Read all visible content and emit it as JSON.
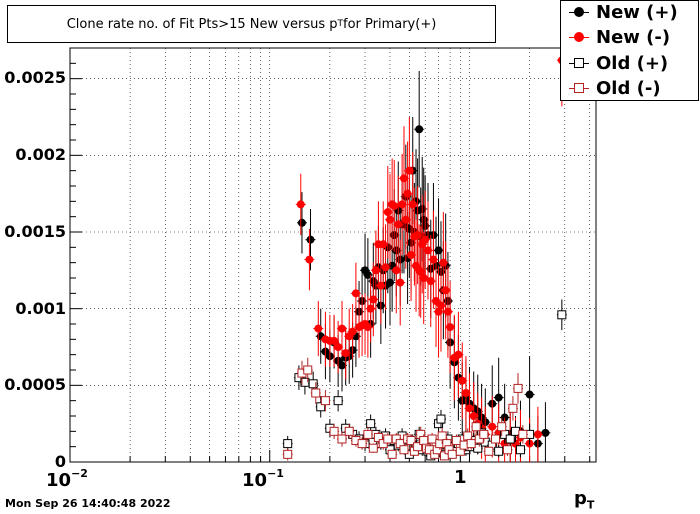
{
  "title": {
    "main": "Clone rate no. of Fit Pts>15 New versus p",
    "sub": "T",
    "suffix": " for Primary(+)"
  },
  "xlabel": {
    "main": "p",
    "sub": "T"
  },
  "timestamp": "Mon Sep 26 14:40:48 2022",
  "y_ticks": [
    {
      "value": 0.0025,
      "label": "0.0025"
    },
    {
      "value": 0.002,
      "label": "0.002"
    },
    {
      "value": 0.0015,
      "label": "0.0015"
    },
    {
      "value": 0.001,
      "label": "0.001"
    },
    {
      "value": 0.0005,
      "label": "0.0005"
    },
    {
      "value": 0,
      "label": "0"
    }
  ],
  "x_ticks": [
    {
      "value": 0.01,
      "base": "10",
      "exp": "−2",
      "label": ""
    },
    {
      "value": 0.1,
      "base": "10",
      "exp": "−1",
      "label": ""
    },
    {
      "value": 1,
      "base": "",
      "exp": "",
      "label": "1"
    }
  ],
  "legend": [
    {
      "label": "New (+)",
      "color": "#000000",
      "marker": "filled-circle"
    },
    {
      "label": "New (-)",
      "color": "#ff0000",
      "marker": "filled-circle"
    },
    {
      "label": "Old (+)",
      "color": "#000000",
      "marker": "open-square"
    },
    {
      "label": "Old (-)",
      "color": "#b22222",
      "marker": "open-square"
    }
  ],
  "chart_data": {
    "type": "scatter",
    "x_scale": "log",
    "xlim": [
      0.01,
      4.3
    ],
    "ylim": [
      0,
      0.0027
    ],
    "grid": true,
    "legend_position": "top-right",
    "series": [
      {
        "name": "New (+)",
        "color": "#000000",
        "marker": "filled-circle",
        "x": [
          0.145,
          0.16,
          0.18,
          0.19,
          0.2,
          0.21,
          0.22,
          0.23,
          0.24,
          0.25,
          0.26,
          0.27,
          0.28,
          0.29,
          0.3,
          0.31,
          0.32,
          0.33,
          0.34,
          0.35,
          0.36,
          0.37,
          0.38,
          0.39,
          0.4,
          0.41,
          0.42,
          0.43,
          0.44,
          0.45,
          0.46,
          0.47,
          0.48,
          0.49,
          0.5,
          0.51,
          0.52,
          0.53,
          0.54,
          0.55,
          0.56,
          0.57,
          0.58,
          0.59,
          0.6,
          0.62,
          0.64,
          0.66,
          0.68,
          0.7,
          0.72,
          0.74,
          0.76,
          0.78,
          0.8,
          0.84,
          0.88,
          0.92,
          0.96,
          1.0,
          1.05,
          1.1,
          1.15,
          1.2,
          1.3,
          1.4,
          1.5,
          1.6,
          1.7,
          1.8,
          2.0,
          2.2,
          2.4
        ],
        "y": [
          0.00156,
          0.00145,
          0.00082,
          0.00072,
          0.00069,
          0.00078,
          0.00066,
          0.00063,
          0.00068,
          0.00069,
          0.00073,
          0.00082,
          0.00098,
          0.00105,
          0.00125,
          0.00122,
          0.0009,
          0.00118,
          0.00115,
          0.00127,
          0.00102,
          0.00125,
          0.00115,
          0.0014,
          0.00117,
          0.00128,
          0.00148,
          0.00138,
          0.00164,
          0.00132,
          0.00155,
          0.00155,
          0.00173,
          0.00133,
          0.00152,
          0.00143,
          0.0019,
          0.0015,
          0.0017,
          0.00164,
          0.00217,
          0.00147,
          0.00165,
          0.00158,
          0.00154,
          0.00148,
          0.00126,
          0.00148,
          0.00128,
          0.00138,
          0.00124,
          0.00112,
          0.00128,
          0.00105,
          0.00078,
          0.00065,
          0.00055,
          0.0004,
          0.00042,
          0.00038,
          0.00035,
          0.00033,
          0.00029,
          0.00026,
          0.00038,
          0.00042,
          0.00029,
          0.00018,
          0.00012,
          0.0002,
          0.00044,
          0.00012,
          0.00019
        ],
        "err": [
          0.0002,
          0.0002,
          0.00018,
          0.00018,
          0.00017,
          0.00017,
          0.00017,
          0.00017,
          0.00018,
          0.00018,
          0.00018,
          0.0002,
          0.0002,
          0.00022,
          0.00024,
          0.00024,
          0.00022,
          0.00025,
          0.00025,
          0.00027,
          0.00025,
          0.00028,
          0.00028,
          0.0003,
          0.00028,
          0.0003,
          0.0003,
          0.0003,
          0.00032,
          0.0003,
          0.00032,
          0.00032,
          0.00034,
          0.0003,
          0.00032,
          0.00032,
          0.00035,
          0.00032,
          0.00034,
          0.00034,
          0.00038,
          0.00032,
          0.00034,
          0.00034,
          0.00033,
          0.00034,
          0.00032,
          0.00034,
          0.00032,
          0.00034,
          0.00033,
          0.00032,
          0.00034,
          0.00032,
          0.0003,
          0.0003,
          0.00028,
          0.00025,
          0.00025,
          0.00024,
          0.00024,
          0.00024,
          0.00022,
          0.00022,
          0.00025,
          0.00026,
          0.00022,
          0.0002,
          0.00018,
          0.0002,
          0.00025,
          0.00018,
          0.0002
        ]
      },
      {
        "name": "New (-)",
        "color": "#ff0000",
        "marker": "filled-circle",
        "x": [
          0.143,
          0.158,
          0.175,
          0.19,
          0.2,
          0.21,
          0.22,
          0.23,
          0.24,
          0.25,
          0.26,
          0.27,
          0.28,
          0.29,
          0.3,
          0.31,
          0.32,
          0.33,
          0.34,
          0.35,
          0.36,
          0.37,
          0.38,
          0.39,
          0.4,
          0.41,
          0.42,
          0.43,
          0.44,
          0.45,
          0.46,
          0.47,
          0.48,
          0.49,
          0.5,
          0.51,
          0.52,
          0.53,
          0.54,
          0.55,
          0.56,
          0.57,
          0.58,
          0.59,
          0.6,
          0.62,
          0.64,
          0.66,
          0.68,
          0.7,
          0.72,
          0.74,
          0.76,
          0.78,
          0.8,
          0.84,
          0.88,
          0.92,
          0.96,
          1.0,
          1.05,
          1.1,
          1.15,
          1.2,
          1.3,
          1.4,
          1.5,
          1.6,
          1.7,
          1.8,
          2.0,
          2.2,
          2.9
        ],
        "y": [
          0.00168,
          0.00132,
          0.00087,
          0.0008,
          0.00079,
          0.00079,
          0.00075,
          0.00087,
          0.00071,
          0.00082,
          0.00085,
          0.0011,
          0.00088,
          0.00089,
          0.0009,
          0.00088,
          0.001,
          0.00106,
          0.00125,
          0.00142,
          0.00115,
          0.00142,
          0.00127,
          0.00163,
          0.00158,
          0.00168,
          0.00167,
          0.00125,
          0.00155,
          0.00117,
          0.00168,
          0.00185,
          0.00158,
          0.00175,
          0.0019,
          0.00135,
          0.00168,
          0.00147,
          0.00128,
          0.00148,
          0.00125,
          0.00124,
          0.00142,
          0.0012,
          0.00145,
          0.00138,
          0.00118,
          0.00132,
          0.00105,
          0.00098,
          0.00102,
          0.0013,
          0.00112,
          0.00098,
          0.00088,
          0.00068,
          0.0007,
          0.00053,
          0.00045,
          0.00035,
          0.0003,
          0.00025,
          0.00022,
          0.00018,
          0.00023,
          0.00019,
          0.00012,
          0.00018,
          0.00012,
          0.00016,
          0.00012,
          0.00018,
          0.00262
        ],
        "err": [
          0.0002,
          0.0002,
          0.00018,
          0.00018,
          0.00017,
          0.00017,
          0.00017,
          0.00018,
          0.00017,
          0.00018,
          0.00018,
          0.0002,
          0.0002,
          0.0002,
          0.0002,
          0.0002,
          0.00022,
          0.00024,
          0.00026,
          0.00028,
          0.00025,
          0.00028,
          0.00028,
          0.0003,
          0.0003,
          0.0003,
          0.0003,
          0.00028,
          0.00032,
          0.00028,
          0.00033,
          0.00034,
          0.00032,
          0.00034,
          0.00035,
          0.0003,
          0.00034,
          0.00032,
          0.0003,
          0.00032,
          0.0003,
          0.0003,
          0.00032,
          0.0003,
          0.00032,
          0.00032,
          0.0003,
          0.00032,
          0.0003,
          0.0003,
          0.0003,
          0.00033,
          0.00032,
          0.0003,
          0.0003,
          0.00028,
          0.00028,
          0.00025,
          0.00024,
          0.00023,
          0.00022,
          0.0002,
          0.0002,
          0.00018,
          0.0002,
          0.00019,
          0.00017,
          0.00018,
          0.00017,
          0.00018,
          0.00017,
          0.00018,
          0.0003
        ]
      },
      {
        "name": "Old (+)",
        "color": "#000000",
        "marker": "open-square",
        "x": [
          0.123,
          0.14,
          0.15,
          0.165,
          0.18,
          0.2,
          0.22,
          0.24,
          0.26,
          0.28,
          0.3,
          0.32,
          0.34,
          0.36,
          0.38,
          0.4,
          0.42,
          0.44,
          0.46,
          0.48,
          0.5,
          0.52,
          0.54,
          0.56,
          0.58,
          0.6,
          0.62,
          0.64,
          0.66,
          0.68,
          0.7,
          0.72,
          0.74,
          0.76,
          0.78,
          0.8,
          0.84,
          0.88,
          0.92,
          0.96,
          1.0,
          1.05,
          1.1,
          1.15,
          1.2,
          1.3,
          1.4,
          1.5,
          1.6,
          1.7,
          1.8,
          2.0,
          2.9
        ],
        "y": [
          0.00012,
          0.00055,
          0.00052,
          0.00051,
          0.00036,
          0.00022,
          0.0004,
          0.00022,
          0.00018,
          0.00015,
          0.00012,
          0.00025,
          0.00018,
          0.00012,
          0.00017,
          8e-05,
          0.00014,
          0.00011,
          0.00017,
          9e-05,
          5e-05,
          0.00014,
          0.0001,
          0.00018,
          8e-05,
          0.00013,
          7e-05,
          4e-05,
          0.00012,
          7e-05,
          0.00025,
          0.00028,
          6e-05,
          5e-05,
          0.00015,
          0.0001,
          7e-05,
          0.00012,
          0.00015,
          8e-05,
          0.0001,
          0.00014,
          9e-05,
          0.00019,
          0.00013,
          0.00011,
          7e-05,
          0.00018,
          0.00015,
          0.0002,
          8e-05,
          0.00018,
          0.00096
        ],
        "err": [
          5e-05,
          8e-05,
          8e-05,
          8e-05,
          7e-05,
          6e-05,
          7e-05,
          6e-05,
          5e-05,
          5e-05,
          5e-05,
          6e-05,
          5e-05,
          4e-05,
          5e-05,
          4e-05,
          4e-05,
          4e-05,
          5e-05,
          4e-05,
          3e-05,
          4e-05,
          4e-05,
          5e-05,
          4e-05,
          4e-05,
          3e-05,
          3e-05,
          4e-05,
          3e-05,
          6e-05,
          6e-05,
          3e-05,
          3e-05,
          5e-05,
          4e-05,
          3e-05,
          4e-05,
          5e-05,
          4e-05,
          4e-05,
          5e-05,
          4e-05,
          6e-05,
          5e-05,
          5e-05,
          4e-05,
          6e-05,
          6e-05,
          7e-05,
          5e-05,
          7e-05,
          0.0001
        ]
      },
      {
        "name": "Old (-)",
        "color": "#b22222",
        "marker": "open-square",
        "x": [
          0.123,
          0.145,
          0.155,
          0.17,
          0.19,
          0.21,
          0.23,
          0.25,
          0.27,
          0.29,
          0.31,
          0.33,
          0.35,
          0.37,
          0.39,
          0.41,
          0.43,
          0.45,
          0.47,
          0.49,
          0.51,
          0.53,
          0.55,
          0.57,
          0.59,
          0.61,
          0.63,
          0.65,
          0.67,
          0.69,
          0.71,
          0.73,
          0.75,
          0.77,
          0.79,
          0.82,
          0.86,
          0.9,
          0.94,
          0.98,
          1.02,
          1.08,
          1.12,
          1.18,
          1.25,
          1.35,
          1.45,
          1.55,
          1.65,
          1.75,
          1.85
        ],
        "y": [
          5e-05,
          0.00058,
          0.0006,
          0.00045,
          0.0004,
          0.0002,
          0.00015,
          0.0002,
          0.00014,
          0.00012,
          0.00018,
          9e-05,
          0.00016,
          0.00012,
          0.00015,
          5e-05,
          0.00015,
          0.00012,
          8e-05,
          0.00015,
          0.00014,
          7e-05,
          0.0001,
          0.00018,
          0.00014,
          9e-05,
          8e-05,
          0.00015,
          5e-05,
          8e-05,
          0.00012,
          0.00017,
          4e-05,
          0.00012,
          8e-05,
          5e-05,
          0.00014,
          7e-05,
          0.00011,
          0.00017,
          0.00012,
          0.00023,
          0.00015,
          0.00018,
          7e-05,
          0.00015,
          0.00023,
          8e-05,
          0.00035,
          0.00048,
          0.00018
        ],
        "err": [
          4e-05,
          8e-05,
          8e-05,
          7e-05,
          7e-05,
          5e-05,
          5e-05,
          5e-05,
          4e-05,
          4e-05,
          5e-05,
          3e-05,
          4e-05,
          4e-05,
          4e-05,
          3e-05,
          4e-05,
          4e-05,
          3e-05,
          4e-05,
          4e-05,
          3e-05,
          3e-05,
          5e-05,
          4e-05,
          3e-05,
          3e-05,
          4e-05,
          3e-05,
          3e-05,
          4e-05,
          5e-05,
          3e-05,
          4e-05,
          3e-05,
          3e-05,
          4e-05,
          3e-05,
          4e-05,
          5e-05,
          4e-05,
          6e-05,
          5e-05,
          5e-05,
          3e-05,
          5e-05,
          6e-05,
          4e-05,
          8e-05,
          0.0001,
          6e-05
        ]
      }
    ]
  }
}
